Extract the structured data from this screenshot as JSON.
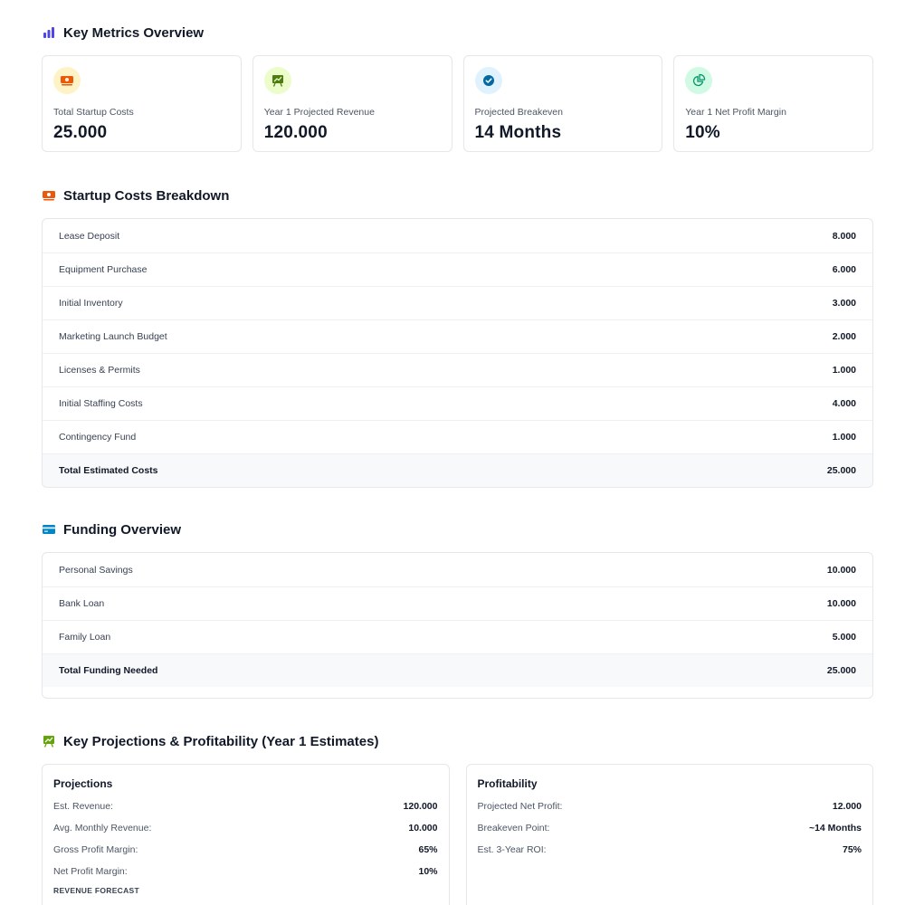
{
  "metrics": {
    "title": "Key Metrics Overview",
    "cards": [
      {
        "label": "Total Startup Costs",
        "value": "25.000",
        "icon": "cash-icon",
        "color": "#ea580c",
        "bg": "#fef3c7"
      },
      {
        "label": "Year 1 Projected Revenue",
        "value": "120.000",
        "icon": "presentation-chart-icon",
        "color": "#4d7c0f",
        "bg": "#ecfccb"
      },
      {
        "label": "Projected Breakeven",
        "value": "14 Months",
        "icon": "check-badge-icon",
        "color": "#0369a1",
        "bg": "#e0f2fe"
      },
      {
        "label": "Year 1 Net Profit Margin",
        "value": "10%",
        "icon": "pie-chart-icon",
        "color": "#059669",
        "bg": "#d1fae5"
      }
    ]
  },
  "costs": {
    "title": "Startup Costs Breakdown",
    "rows": [
      {
        "label": "Lease Deposit",
        "value": "8.000"
      },
      {
        "label": "Equipment Purchase",
        "value": "6.000"
      },
      {
        "label": "Initial Inventory",
        "value": "3.000"
      },
      {
        "label": "Marketing Launch Budget",
        "value": "2.000"
      },
      {
        "label": "Licenses & Permits",
        "value": "1.000"
      },
      {
        "label": "Initial Staffing Costs",
        "value": "4.000"
      },
      {
        "label": "Contingency Fund",
        "value": "1.000"
      }
    ],
    "total": {
      "label": "Total Estimated Costs",
      "value": "25.000"
    }
  },
  "funding": {
    "title": "Funding Overview",
    "rows": [
      {
        "label": "Personal Savings",
        "value": "10.000"
      },
      {
        "label": "Bank Loan",
        "value": "10.000"
      },
      {
        "label": "Family Loan",
        "value": "5.000"
      }
    ],
    "total": {
      "label": "Total Funding Needed",
      "value": "25.000"
    }
  },
  "projections": {
    "title": "Key Projections & Profitability (Year 1 Estimates)",
    "left": {
      "title": "Projections",
      "items": [
        {
          "k": "Est. Revenue:",
          "v": "120.000"
        },
        {
          "k": "Avg. Monthly Revenue:",
          "v": "10.000"
        },
        {
          "k": "Gross Profit Margin:",
          "v": "65%"
        },
        {
          "k": "Net Profit Margin:",
          "v": "10%"
        }
      ],
      "forecast_label": "REVENUE FORECAST"
    },
    "right": {
      "title": "Profitability",
      "items": [
        {
          "k": "Projected Net Profit:",
          "v": "12.000"
        },
        {
          "k": "Breakeven Point:",
          "v": "~14 Months"
        },
        {
          "k": "Est. 3-Year ROI:",
          "v": "75%"
        }
      ]
    }
  }
}
